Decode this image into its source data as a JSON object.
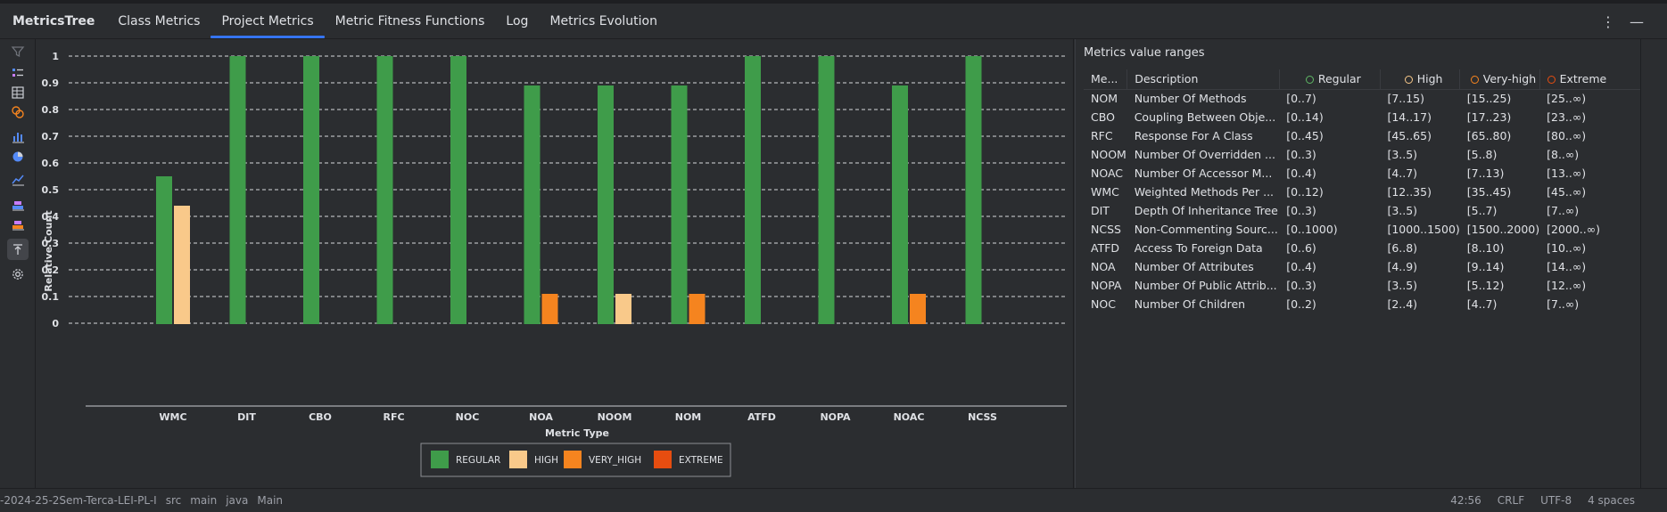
{
  "app": {
    "title": "MetricsTree"
  },
  "tabs": [
    {
      "label": "Class Metrics"
    },
    {
      "label": "Project Metrics"
    },
    {
      "label": "Metric Fitness Functions"
    },
    {
      "label": "Log"
    },
    {
      "label": "Metrics Evolution"
    }
  ],
  "header_buttons": {
    "more": "⋮",
    "minimize": "—"
  },
  "toolbar": {
    "icons": [
      "filter-icon",
      "sort-icon",
      "grid-icon",
      "circles-icon",
      "bar-chart-icon",
      "pie-chart-icon",
      "line-chart-icon",
      "category-chart-icon",
      "category-chart-alt-icon",
      "export-icon",
      "settings-icon"
    ]
  },
  "colors": {
    "regular": "#3f9c4a",
    "high": "#f9c98a",
    "very_high": "#f5841f",
    "extreme": "#e64d10",
    "accent": "#3574f0"
  },
  "chart_data": {
    "type": "bar",
    "categories": [
      "WMC",
      "DIT",
      "CBO",
      "RFC",
      "NOC",
      "NOA",
      "NOOM",
      "NOM",
      "ATFD",
      "NOPA",
      "NOAC",
      "NCSS"
    ],
    "series": [
      {
        "name": "REGULAR",
        "values": [
          0.55,
          1,
          1,
          1,
          1,
          0.89,
          0.89,
          0.89,
          1,
          1,
          0.89,
          1
        ]
      },
      {
        "name": "HIGH",
        "values": [
          0.44,
          0,
          0,
          0,
          0,
          0,
          0.11,
          0,
          0,
          0,
          0,
          0
        ]
      },
      {
        "name": "VERY_HIGH",
        "values": [
          0,
          0,
          0,
          0,
          0,
          0.11,
          0,
          0.11,
          0,
          0,
          0.11,
          0
        ]
      },
      {
        "name": "EXTREME",
        "values": [
          0,
          0,
          0,
          0,
          0,
          0,
          0,
          0,
          0,
          0,
          0,
          0
        ]
      }
    ],
    "xlabel": "Metric Type",
    "ylabel": "Relative Count",
    "ylim": [
      0,
      1
    ],
    "yticks": [
      "0",
      "0.1",
      "0.2",
      "0.3",
      "0.4",
      "0.5",
      "0.6",
      "0.7",
      "0.8",
      "0.9",
      "1"
    ],
    "grid": true,
    "legend_position": "bottom-center"
  },
  "ranges": {
    "title": "Metrics value ranges",
    "headers": {
      "metric": "Me...",
      "description": "Description",
      "regular": "Regular",
      "high": "High",
      "very_high": "Very-high",
      "extreme": "Extreme"
    },
    "rows": [
      {
        "metric": "NOM",
        "description": "Number Of Methods",
        "regular": "[0..7)",
        "high": "[7..15)",
        "very_high": "[15..25)",
        "extreme": "[25..∞)"
      },
      {
        "metric": "CBO",
        "description": "Coupling Between Obje...",
        "regular": "[0..14)",
        "high": "[14..17)",
        "very_high": "[17..23)",
        "extreme": "[23..∞)"
      },
      {
        "metric": "RFC",
        "description": "Response For A Class",
        "regular": "[0..45)",
        "high": "[45..65)",
        "very_high": "[65..80)",
        "extreme": "[80..∞)"
      },
      {
        "metric": "NOOM",
        "description": "Number Of Overridden ...",
        "regular": "[0..3)",
        "high": "[3..5)",
        "very_high": "[5..8)",
        "extreme": "[8..∞)"
      },
      {
        "metric": "NOAC",
        "description": "Number Of Accessor M...",
        "regular": "[0..4)",
        "high": "[4..7)",
        "very_high": "[7..13)",
        "extreme": "[13..∞)"
      },
      {
        "metric": "WMC",
        "description": "Weighted Methods Per ...",
        "regular": "[0..12)",
        "high": "[12..35)",
        "very_high": "[35..45)",
        "extreme": "[45..∞)"
      },
      {
        "metric": "DIT",
        "description": "Depth Of Inheritance Tree",
        "regular": "[0..3)",
        "high": "[3..5)",
        "very_high": "[5..7)",
        "extreme": "[7..∞)"
      },
      {
        "metric": "NCSS",
        "description": "Non-Commenting Sourc...",
        "regular": "[0..1000)",
        "high": "[1000..1500)",
        "very_high": "[1500..2000)",
        "extreme": "[2000..∞)"
      },
      {
        "metric": "ATFD",
        "description": "Access To Foreign Data",
        "regular": "[0..6)",
        "high": "[6..8)",
        "very_high": "[8..10)",
        "extreme": "[10..∞)"
      },
      {
        "metric": "NOA",
        "description": "Number Of Attributes",
        "regular": "[0..4)",
        "high": "[4..9)",
        "very_high": "[9..14)",
        "extreme": "[14..∞)"
      },
      {
        "metric": "NOPA",
        "description": "Number Of Public Attrib...",
        "regular": "[0..3)",
        "high": "[3..5)",
        "very_high": "[5..12)",
        "extreme": "[12..∞)"
      },
      {
        "metric": "NOC",
        "description": "Number Of Children",
        "regular": "[0..2)",
        "high": "[2..4)",
        "very_high": "[4..7)",
        "extreme": "[7..∞)"
      }
    ]
  },
  "statusbar": {
    "project": "-2024-25-2Sem-Terca-LEI-PL-I",
    "crumbs": [
      "src",
      "main",
      "java",
      "Main"
    ],
    "position": "42:56",
    "line_sep": "CRLF",
    "encoding": "UTF-8",
    "indent": "4 spaces"
  }
}
